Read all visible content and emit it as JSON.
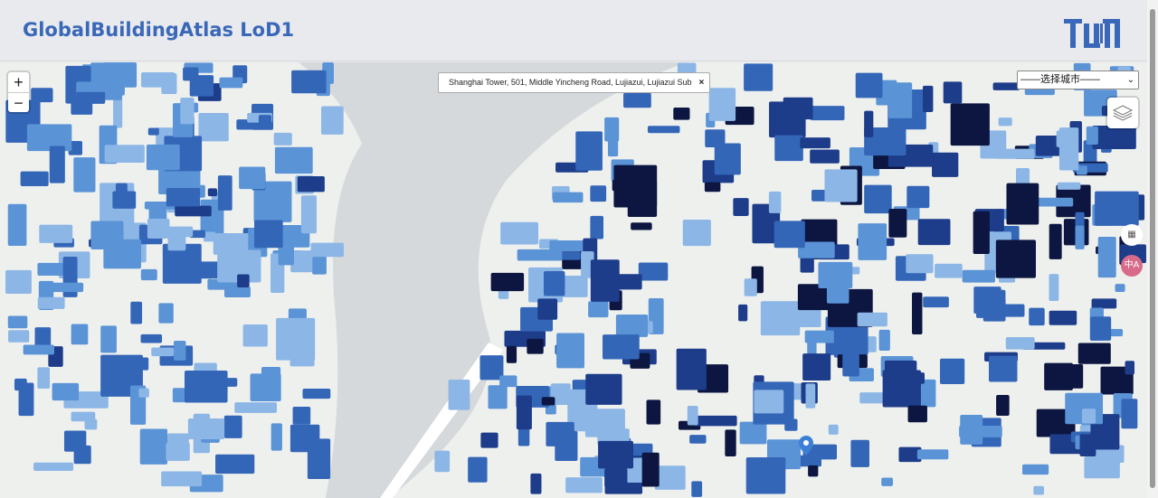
{
  "header": {
    "title": "GlobalBuildingAtlas LoD1",
    "logo_text": "TUM",
    "brand_color": "#3a68b8"
  },
  "map": {
    "zoom_in": "+",
    "zoom_out": "−",
    "search": {
      "value": "Shanghai Tower, 501, Middle Yincheng Road, Lujiazui, Lujiazui Sub",
      "clear": "×"
    },
    "city_select": {
      "selected": "——选择城市——",
      "arrow": "⌄"
    },
    "layers_icon": "layers-icon",
    "qr_icon": "qr-add-icon",
    "translate_icon": "translate-icon",
    "translate_label": "中A",
    "marker_color": "#3b7fd6",
    "building_colors": [
      "#8cb6e6",
      "#5a93d6",
      "#3466b8",
      "#1d3c8a",
      "#0c1640"
    ]
  }
}
